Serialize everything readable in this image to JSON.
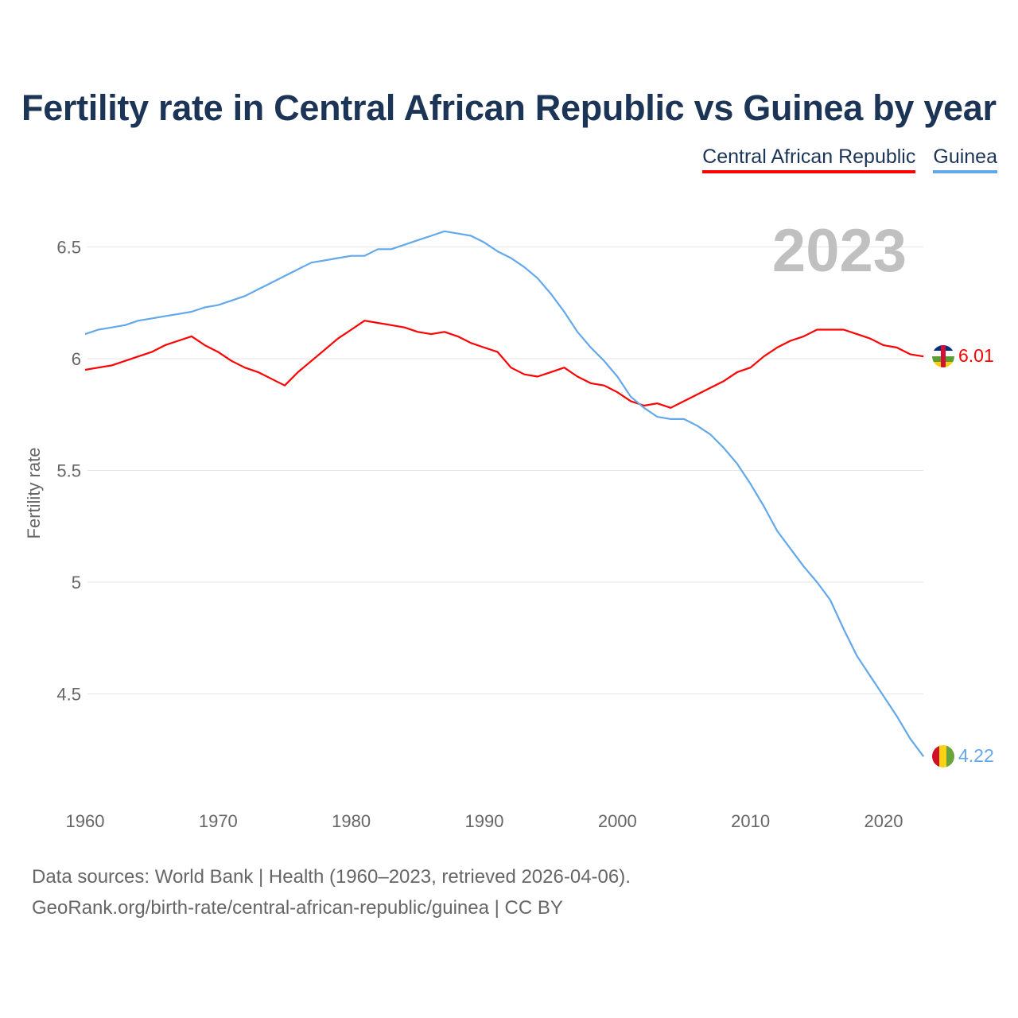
{
  "title": "Fertility rate in Central African Republic vs Guinea by year",
  "footer": {
    "line1": "Data sources: World Bank | Health (1960–2023, retrieved 2026-04-06).",
    "line2": "GeoRank.org/birth-rate/central-african-republic/guinea | CC BY"
  },
  "chart_data": {
    "type": "line",
    "title": "Fertility rate in Central African Republic vs Guinea by year",
    "xlabel": "",
    "ylabel": "Fertility rate",
    "year_label": "2023",
    "xlim": [
      1960,
      2023
    ],
    "ylim": [
      4.1,
      6.7
    ],
    "x_ticks": [
      1960,
      1970,
      1980,
      1990,
      2000,
      2010,
      2020
    ],
    "y_ticks": [
      4.5,
      5,
      5.5,
      6,
      6.5
    ],
    "y_tick_labels": [
      "4.5",
      "5",
      "5.5",
      "6",
      "6.5"
    ],
    "grid": true,
    "legend_position": "top-right",
    "x": [
      1960,
      1961,
      1962,
      1963,
      1964,
      1965,
      1966,
      1967,
      1968,
      1969,
      1970,
      1971,
      1972,
      1973,
      1974,
      1975,
      1976,
      1977,
      1978,
      1979,
      1980,
      1981,
      1982,
      1983,
      1984,
      1985,
      1986,
      1987,
      1988,
      1989,
      1990,
      1991,
      1992,
      1993,
      1994,
      1995,
      1996,
      1997,
      1998,
      1999,
      2000,
      2001,
      2002,
      2003,
      2004,
      2005,
      2006,
      2007,
      2008,
      2009,
      2010,
      2011,
      2012,
      2013,
      2014,
      2015,
      2016,
      2017,
      2018,
      2019,
      2020,
      2021,
      2022,
      2023
    ],
    "series": [
      {
        "name": "Central African Republic",
        "color": "#ff0000",
        "end_label": "6.01",
        "values": [
          5.95,
          5.96,
          5.97,
          5.99,
          6.01,
          6.03,
          6.06,
          6.08,
          6.1,
          6.06,
          6.03,
          5.99,
          5.96,
          5.94,
          5.91,
          5.88,
          5.94,
          5.99,
          6.04,
          6.09,
          6.13,
          6.17,
          6.16,
          6.15,
          6.14,
          6.12,
          6.11,
          6.12,
          6.1,
          6.07,
          6.05,
          6.03,
          5.96,
          5.93,
          5.92,
          5.94,
          5.96,
          5.92,
          5.89,
          5.88,
          5.85,
          5.81,
          5.79,
          5.8,
          5.78,
          5.81,
          5.84,
          5.87,
          5.9,
          5.94,
          5.96,
          6.01,
          6.05,
          6.08,
          6.1,
          6.13,
          6.13,
          6.13,
          6.11,
          6.09,
          6.06,
          6.05,
          6.02,
          6.01
        ]
      },
      {
        "name": "Guinea",
        "color": "#62a8ea",
        "end_label": "4.22",
        "values": [
          6.11,
          6.13,
          6.14,
          6.15,
          6.17,
          6.18,
          6.19,
          6.2,
          6.21,
          6.23,
          6.24,
          6.26,
          6.28,
          6.31,
          6.34,
          6.37,
          6.4,
          6.43,
          6.44,
          6.45,
          6.46,
          6.46,
          6.49,
          6.49,
          6.51,
          6.53,
          6.55,
          6.57,
          6.56,
          6.55,
          6.52,
          6.48,
          6.45,
          6.41,
          6.36,
          6.29,
          6.21,
          6.12,
          6.05,
          5.99,
          5.92,
          5.83,
          5.78,
          5.74,
          5.73,
          5.73,
          5.7,
          5.66,
          5.6,
          5.53,
          5.44,
          5.34,
          5.23,
          5.15,
          5.07,
          5.0,
          4.92,
          4.79,
          4.67,
          4.58,
          4.49,
          4.4,
          4.3,
          4.22
        ]
      }
    ]
  }
}
